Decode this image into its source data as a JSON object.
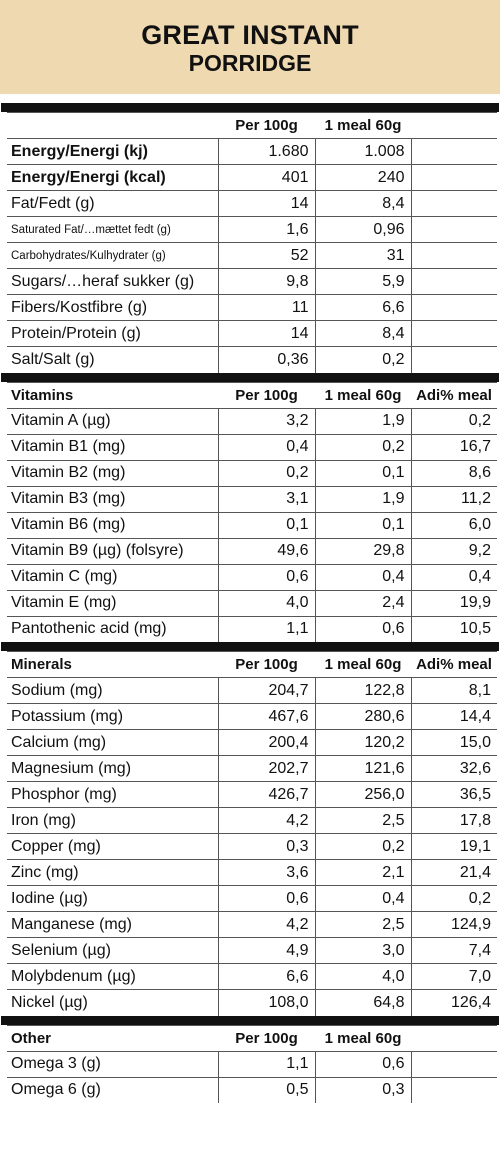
{
  "title": {
    "line1": "GREAT INSTANT",
    "line2": "PORRIDGE"
  },
  "nutrition": {
    "headers": [
      "",
      "Per 100g",
      "1 meal 60g",
      ""
    ],
    "rows": [
      {
        "label": "Energy/Energi (kj)",
        "per100": "1.680",
        "meal": "1.008",
        "adi": "",
        "style": "bold"
      },
      {
        "label": "Energy/Energi (kcal)",
        "per100": "401",
        "meal": "240",
        "adi": "",
        "style": "bold"
      },
      {
        "label": "Fat/Fedt (g)",
        "per100": "14",
        "meal": "8,4",
        "adi": "",
        "style": ""
      },
      {
        "label": "Saturated Fat/…mættet fedt (g)",
        "per100": "1,6",
        "meal": "0,96",
        "adi": "",
        "style": "small"
      },
      {
        "label": "Carbohydrates/Kulhydrater (g)",
        "per100": "52",
        "meal": "31",
        "adi": "",
        "style": "small"
      },
      {
        "label": "Sugars/…heraf sukker (g)",
        "per100": "9,8",
        "meal": "5,9",
        "adi": "",
        "style": ""
      },
      {
        "label": "Fibers/Kostfibre (g)",
        "per100": "11",
        "meal": "6,6",
        "adi": "",
        "style": ""
      },
      {
        "label": "Protein/Protein (g)",
        "per100": "14",
        "meal": "8,4",
        "adi": "",
        "style": ""
      },
      {
        "label": "Salt/Salt (g)",
        "per100": "0,36",
        "meal": "0,2",
        "adi": "",
        "style": ""
      }
    ]
  },
  "vitamins": {
    "headers": [
      "Vitamins",
      "Per 100g",
      "1 meal 60g",
      "Adi% meal"
    ],
    "rows": [
      {
        "label": "Vitamin A (µg)",
        "per100": "3,2",
        "meal": "1,9",
        "adi": "0,2"
      },
      {
        "label": "Vitamin B1 (mg)",
        "per100": "0,4",
        "meal": "0,2",
        "adi": "16,7"
      },
      {
        "label": "Vitamin B2 (mg)",
        "per100": "0,2",
        "meal": "0,1",
        "adi": "8,6"
      },
      {
        "label": "Vitamin B3 (mg)",
        "per100": "3,1",
        "meal": "1,9",
        "adi": "11,2"
      },
      {
        "label": "Vitamin B6 (mg)",
        "per100": "0,1",
        "meal": "0,1",
        "adi": "6,0"
      },
      {
        "label": "Vitamin B9 (µg) (folsyre)",
        "per100": "49,6",
        "meal": "29,8",
        "adi": "9,2"
      },
      {
        "label": "Vitamin C (mg)",
        "per100": "0,6",
        "meal": "0,4",
        "adi": "0,4"
      },
      {
        "label": "Vitamin E (mg)",
        "per100": "4,0",
        "meal": "2,4",
        "adi": "19,9"
      },
      {
        "label": "Pantothenic acid (mg)",
        "per100": "1,1",
        "meal": "0,6",
        "adi": "10,5"
      }
    ]
  },
  "minerals": {
    "headers": [
      "Minerals",
      "Per 100g",
      "1 meal 60g",
      "Adi% meal"
    ],
    "rows": [
      {
        "label": "Sodium (mg)",
        "per100": "204,7",
        "meal": "122,8",
        "adi": "8,1"
      },
      {
        "label": "Potassium (mg)",
        "per100": "467,6",
        "meal": "280,6",
        "adi": "14,4"
      },
      {
        "label": "Calcium (mg)",
        "per100": "200,4",
        "meal": "120,2",
        "adi": "15,0"
      },
      {
        "label": "Magnesium (mg)",
        "per100": "202,7",
        "meal": "121,6",
        "adi": "32,6"
      },
      {
        "label": "Phosphor (mg)",
        "per100": "426,7",
        "meal": "256,0",
        "adi": "36,5"
      },
      {
        "label": "Iron (mg)",
        "per100": "4,2",
        "meal": "2,5",
        "adi": "17,8"
      },
      {
        "label": "Copper (mg)",
        "per100": "0,3",
        "meal": "0,2",
        "adi": "19,1"
      },
      {
        "label": "Zinc (mg)",
        "per100": "3,6",
        "meal": "2,1",
        "adi": "21,4"
      },
      {
        "label": "Iodine (µg)",
        "per100": "0,6",
        "meal": "0,4",
        "adi": "0,2"
      },
      {
        "label": "Manganese (mg)",
        "per100": "4,2",
        "meal": "2,5",
        "adi": "124,9"
      },
      {
        "label": "Selenium (µg)",
        "per100": "4,9",
        "meal": "3,0",
        "adi": "7,4"
      },
      {
        "label": "Molybdenum (µg)",
        "per100": "6,6",
        "meal": "4,0",
        "adi": "7,0"
      },
      {
        "label": "Nickel (µg)",
        "per100": "108,0",
        "meal": "64,8",
        "adi": "126,4"
      }
    ]
  },
  "other": {
    "headers": [
      "Other",
      "Per 100g",
      "1 meal 60g",
      ""
    ],
    "rows": [
      {
        "label": "Omega 3 (g)",
        "per100": "1,1",
        "meal": "0,6",
        "adi": ""
      },
      {
        "label": "Omega 6 (g)",
        "per100": "0,5",
        "meal": "0,3",
        "adi": ""
      }
    ]
  },
  "colors": {
    "header_bg": "#efd9b1",
    "rule": "#111111"
  }
}
